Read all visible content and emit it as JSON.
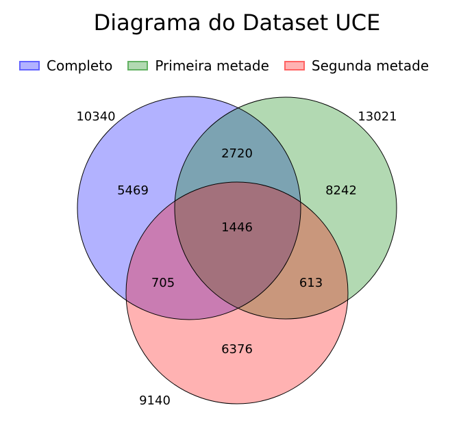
{
  "title": "Diagrama do Dataset UCE",
  "legend": [
    {
      "label": "Completo",
      "color": "#0000ff"
    },
    {
      "label": "Primeira metade",
      "color": "#008000"
    },
    {
      "label": "Segunda metade",
      "color": "#ff0000"
    }
  ],
  "sets": {
    "completo": {
      "total": "10340",
      "fill": "#b0b0ff"
    },
    "primeira": {
      "total": "13021",
      "fill": "#b2d8b2"
    },
    "segunda": {
      "total": "9140",
      "fill": "#ffb0b0"
    }
  },
  "regions": {
    "only_completo": "5469",
    "only_primeira": "8242",
    "only_segunda": "6376",
    "completo_primeira": "2720",
    "completo_segunda": "705",
    "primeira_segunda": "613",
    "all_three": "1446"
  }
}
